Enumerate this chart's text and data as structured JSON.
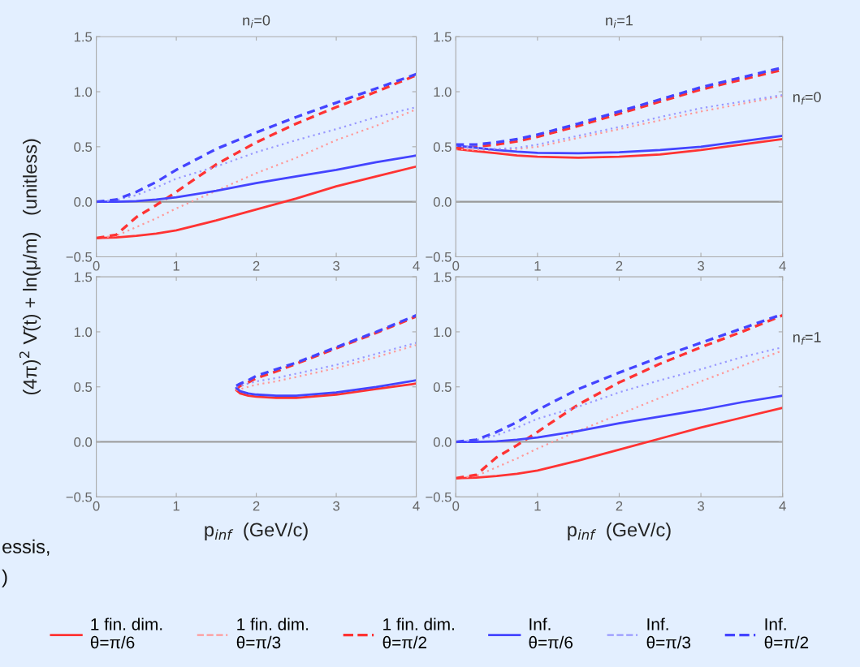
{
  "chart_data": [
    {
      "type": "line",
      "title": "n$_{i}$=0",
      "ylabel": "(4π)$^{2}$ V̄(t) + ln(μ/m)   (unitless)",
      "x": [
        0,
        0.25,
        0.5,
        0.75,
        1,
        1.5,
        2,
        2.5,
        3,
        3.5,
        4
      ],
      "xlim": [
        0,
        4
      ],
      "xticks": [
        0,
        1,
        2,
        3,
        4
      ],
      "ylim": [
        -0.5,
        1.5
      ],
      "yticks": [
        {
          "value": -0.5,
          "label": "−0.5"
        },
        {
          "value": 0,
          "label": "0.0"
        },
        {
          "value": 0.5,
          "label": "0.5"
        },
        {
          "value": 1,
          "label": "1.0"
        },
        {
          "value": 1.5,
          "label": "1.5"
        }
      ],
      "ref_lines": [
        {
          "axis": "y",
          "value": 0,
          "color": "#999999"
        }
      ],
      "series": [
        {
          "color": "#ff3333",
          "line_style": "solid",
          "values": [
            -0.33,
            -0.325,
            -0.31,
            -0.29,
            -0.26,
            -0.17,
            -0.07,
            0.03,
            0.14,
            0.23,
            0.32
          ]
        },
        {
          "color": "#ff9999",
          "line_style": "dotted",
          "values": [
            -0.33,
            -0.31,
            -0.23,
            -0.15,
            -0.06,
            0.1,
            0.26,
            0.4,
            0.56,
            0.69,
            0.84
          ]
        },
        {
          "color": "#ff3333",
          "line_style": "dashed",
          "values": [
            -0.33,
            -0.3,
            -0.14,
            -0.03,
            0.09,
            0.34,
            0.54,
            0.71,
            0.86,
            1.0,
            1.15
          ]
        },
        {
          "color": "#4444ff",
          "line_style": "solid",
          "values": [
            0,
            0,
            0.005,
            0.02,
            0.04,
            0.1,
            0.17,
            0.23,
            0.29,
            0.36,
            0.42
          ]
        },
        {
          "color": "#9999ff",
          "line_style": "dotted",
          "values": [
            0,
            0.015,
            0.06,
            0.13,
            0.21,
            0.32,
            0.45,
            0.56,
            0.66,
            0.77,
            0.86
          ]
        },
        {
          "color": "#4444ff",
          "line_style": "dashed",
          "values": [
            0,
            0.02,
            0.09,
            0.18,
            0.29,
            0.48,
            0.63,
            0.77,
            0.9,
            1.03,
            1.16
          ]
        }
      ]
    },
    {
      "type": "line",
      "title": "n$_{i}$=1",
      "annotations": [
        "n$_{f}$=0"
      ],
      "x": [
        0,
        0.25,
        0.5,
        0.75,
        1,
        1.5,
        2,
        2.5,
        3,
        3.5,
        4
      ],
      "xlim": [
        0,
        4
      ],
      "xticks": [
        0,
        1,
        2,
        3,
        4
      ],
      "ylim": [
        -0.5,
        1.5
      ],
      "yticks": [
        {
          "value": -0.5,
          "label": "−0.5"
        },
        {
          "value": 0,
          "label": "0.0"
        },
        {
          "value": 0.5,
          "label": "0.5"
        },
        {
          "value": 1,
          "label": "1.0"
        },
        {
          "value": 1.5,
          "label": "1.5"
        }
      ],
      "ref_lines": [
        {
          "axis": "y",
          "value": 0,
          "color": "#999999"
        }
      ],
      "series": [
        {
          "color": "#ff3333",
          "line_style": "solid",
          "values": [
            0.48,
            0.46,
            0.44,
            0.42,
            0.41,
            0.4,
            0.41,
            0.43,
            0.47,
            0.52,
            0.57
          ]
        },
        {
          "color": "#ff9999",
          "line_style": "dotted",
          "values": [
            0.48,
            0.47,
            0.47,
            0.48,
            0.5,
            0.58,
            0.66,
            0.74,
            0.82,
            0.89,
            0.96
          ]
        },
        {
          "color": "#ff3333",
          "line_style": "dashed",
          "values": [
            0.49,
            0.5,
            0.52,
            0.55,
            0.59,
            0.69,
            0.8,
            0.91,
            1.02,
            1.11,
            1.2
          ]
        },
        {
          "color": "#4444ff",
          "line_style": "solid",
          "values": [
            0.51,
            0.49,
            0.47,
            0.455,
            0.445,
            0.44,
            0.45,
            0.47,
            0.5,
            0.55,
            0.6
          ]
        },
        {
          "color": "#9999ff",
          "line_style": "dotted",
          "values": [
            0.51,
            0.49,
            0.48,
            0.49,
            0.52,
            0.6,
            0.68,
            0.77,
            0.85,
            0.91,
            0.97
          ]
        },
        {
          "color": "#4444ff",
          "line_style": "dashed",
          "values": [
            0.52,
            0.52,
            0.54,
            0.57,
            0.61,
            0.71,
            0.82,
            0.93,
            1.04,
            1.13,
            1.22
          ]
        }
      ]
    },
    {
      "type": "line",
      "xlabel": "p$_{inf}$  (GeV/c)",
      "annotations": [
        "essis,",
        ")"
      ],
      "x": [
        1.75,
        1.8,
        1.9,
        2,
        2.25,
        2.5,
        3,
        3.5,
        4
      ],
      "xlim": [
        0,
        4
      ],
      "xticks": [
        0,
        1,
        2,
        3,
        4
      ],
      "ylim": [
        -0.5,
        1.5
      ],
      "yticks": [
        {
          "value": -0.5,
          "label": "−0.5"
        },
        {
          "value": 0,
          "label": "0.0"
        },
        {
          "value": 0.5,
          "label": "0.5"
        },
        {
          "value": 1,
          "label": "1.0"
        },
        {
          "value": 1.5,
          "label": "1.5"
        }
      ],
      "ref_lines": [
        {
          "axis": "y",
          "value": 0,
          "color": "#999999"
        }
      ],
      "series": [
        {
          "color": "#ff3333",
          "line_style": "solid",
          "values": [
            0.47,
            0.44,
            0.42,
            0.41,
            0.4,
            0.4,
            0.43,
            0.48,
            0.53
          ]
        },
        {
          "color": "#ff9999",
          "line_style": "dotted",
          "values": [
            0.47,
            0.48,
            0.5,
            0.52,
            0.55,
            0.59,
            0.67,
            0.77,
            0.88
          ]
        },
        {
          "color": "#ff3333",
          "line_style": "dashed",
          "values": [
            0.48,
            0.51,
            0.54,
            0.58,
            0.64,
            0.71,
            0.85,
            0.99,
            1.14
          ]
        },
        {
          "color": "#4444ff",
          "line_style": "solid",
          "values": [
            0.49,
            0.46,
            0.44,
            0.43,
            0.42,
            0.42,
            0.45,
            0.5,
            0.56
          ]
        },
        {
          "color": "#9999ff",
          "line_style": "dotted",
          "values": [
            0.5,
            0.51,
            0.53,
            0.55,
            0.58,
            0.62,
            0.7,
            0.8,
            0.9
          ]
        },
        {
          "color": "#4444ff",
          "line_style": "dashed",
          "values": [
            0.51,
            0.53,
            0.56,
            0.6,
            0.66,
            0.72,
            0.86,
            1.0,
            1.15
          ]
        }
      ]
    },
    {
      "type": "line",
      "xlabel": "p$_{inf}$  (GeV/c)",
      "annotations": [
        "n$_{f}$=1"
      ],
      "legend": "bottom",
      "x": [
        0,
        0.25,
        0.5,
        0.75,
        1,
        1.5,
        2,
        2.5,
        3,
        3.5,
        4
      ],
      "xlim": [
        0,
        4
      ],
      "xticks": [
        0,
        1,
        2,
        3,
        4
      ],
      "ylim": [
        -0.5,
        1.5
      ],
      "yticks": [
        {
          "value": -0.5,
          "label": "−0.5"
        },
        {
          "value": 0,
          "label": "0.0"
        },
        {
          "value": 0.5,
          "label": "0.5"
        },
        {
          "value": 1,
          "label": "1.0"
        },
        {
          "value": 1.5,
          "label": "1.5"
        }
      ],
      "ref_lines": [
        {
          "axis": "y",
          "value": 0,
          "color": "#999999"
        }
      ],
      "series": [
        {
          "name": "1 fin. dim.\nθ=π/6",
          "color": "#ff3333",
          "line_style": "solid",
          "values": [
            -0.33,
            -0.325,
            -0.31,
            -0.29,
            -0.26,
            -0.17,
            -0.07,
            0.03,
            0.13,
            0.22,
            0.31
          ]
        },
        {
          "name": "1 fin. dim.\nθ=π/3",
          "color": "#ff9999",
          "line_style": "dotted",
          "values": [
            -0.33,
            -0.31,
            -0.23,
            -0.15,
            -0.06,
            0.1,
            0.25,
            0.4,
            0.55,
            0.69,
            0.83
          ]
        },
        {
          "name": "1 fin. dim.\nθ=π/2",
          "color": "#ff3333",
          "line_style": "dashed",
          "values": [
            -0.33,
            -0.3,
            -0.14,
            -0.03,
            0.09,
            0.34,
            0.54,
            0.71,
            0.86,
            1.0,
            1.15
          ]
        },
        {
          "name": "Inf.\nθ=π/6",
          "color": "#4444ff",
          "line_style": "solid",
          "values": [
            0,
            0,
            0.005,
            0.02,
            0.04,
            0.1,
            0.17,
            0.23,
            0.29,
            0.36,
            0.42
          ]
        },
        {
          "name": "Inf.\nθ=π/3",
          "color": "#9999ff",
          "line_style": "dotted",
          "values": [
            0,
            0.015,
            0.06,
            0.13,
            0.21,
            0.32,
            0.45,
            0.56,
            0.66,
            0.77,
            0.86
          ]
        },
        {
          "name": "Inf.\nθ=π/2",
          "color": "#4444ff",
          "line_style": "dashed",
          "values": [
            0,
            0.02,
            0.09,
            0.18,
            0.29,
            0.48,
            0.63,
            0.77,
            0.9,
            1.03,
            1.16
          ]
        }
      ]
    }
  ]
}
